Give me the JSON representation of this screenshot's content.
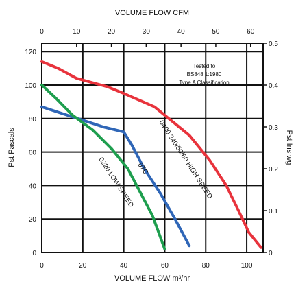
{
  "chart_data": {
    "type": "line",
    "title": "",
    "x": {
      "label": "VOLUME FLOW m³/hr",
      "range": [
        0,
        108
      ],
      "ticks": [
        0,
        20,
        40,
        60,
        80,
        100
      ]
    },
    "x2": {
      "label": "VOLUME FLOW CFM",
      "range": [
        0,
        63.6
      ],
      "ticks": [
        0,
        10,
        20,
        30,
        40,
        50,
        60
      ]
    },
    "y": {
      "label": "Pst Pascals",
      "range": [
        0,
        125
      ],
      "ticks": [
        0,
        20,
        40,
        60,
        80,
        100,
        120
      ]
    },
    "y2": {
      "label": "Pst Ins wg",
      "range": [
        0,
        0.5
      ],
      "ticks": [
        "0",
        "0.1",
        "0.2",
        "0.3",
        "0.4",
        "0.5"
      ]
    },
    "grid": true,
    "annotation": [
      "Tested to",
      "BS848 1:1980",
      "Type A Classification"
    ],
    "series": [
      {
        "label": "0400 240/50/60 HIGH SPEED",
        "color": "#e8333c",
        "points": [
          [
            0,
            114
          ],
          [
            8,
            110
          ],
          [
            17,
            104
          ],
          [
            32,
            99
          ],
          [
            40,
            95
          ],
          [
            55,
            87
          ],
          [
            62,
            80
          ],
          [
            72,
            70
          ],
          [
            82,
            55
          ],
          [
            90,
            40
          ],
          [
            96,
            25
          ],
          [
            101,
            12
          ],
          [
            107,
            3
          ]
        ]
      },
      {
        "label": "07C",
        "color": "#2f66b7",
        "points": [
          [
            0,
            87
          ],
          [
            10,
            83
          ],
          [
            20,
            79
          ],
          [
            30,
            75
          ],
          [
            40,
            72
          ],
          [
            44,
            64
          ],
          [
            50,
            50
          ],
          [
            58,
            35
          ],
          [
            65,
            20
          ],
          [
            72,
            4
          ]
        ]
      },
      {
        "label": "0220 LOW SPEED",
        "color": "#1e9e4e",
        "points": [
          [
            0,
            100
          ],
          [
            7,
            92
          ],
          [
            15,
            82
          ],
          [
            25,
            73
          ],
          [
            34,
            62
          ],
          [
            42,
            50
          ],
          [
            48,
            36
          ],
          [
            54,
            22
          ],
          [
            57,
            12
          ],
          [
            60,
            2
          ]
        ]
      }
    ]
  }
}
